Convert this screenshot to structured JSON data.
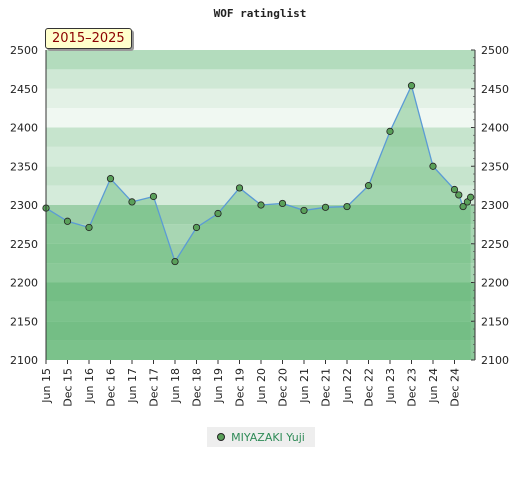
{
  "chart_data": {
    "type": "line",
    "title": "WOF ratinglist",
    "period_label": "2015–2025",
    "ylim": [
      2100,
      2500
    ],
    "yticks": [
      2100,
      2150,
      2200,
      2250,
      2300,
      2350,
      2400,
      2450,
      2500
    ],
    "xticks": [
      "Jun 15",
      "Dec 15",
      "Jun 16",
      "Dec 16",
      "Jun 17",
      "Dec 17",
      "Jun 18",
      "Dec 18",
      "Jun 19",
      "Dec 19",
      "Jun 20",
      "Dec 20",
      "Jun 21",
      "Dec 21",
      "Jun 22",
      "Dec 22",
      "Jun 23",
      "Dec 23",
      "Jun 24",
      "Dec 24"
    ],
    "grid": true,
    "legend_placement": "bottom-center",
    "series": [
      {
        "name": "MIYAZAKI Yuji",
        "x": [
          0,
          1,
          2,
          3,
          4,
          5,
          6,
          7,
          8,
          9,
          10,
          11,
          12,
          13,
          14,
          15,
          16,
          17,
          18,
          19,
          19.2,
          19.4,
          19.6,
          19.75
        ],
        "values": [
          2296,
          2279,
          2271,
          2334,
          2304,
          2311,
          2227,
          2271,
          2289,
          2322,
          2300,
          2302,
          2293,
          2297,
          2298,
          2325,
          2395,
          2454,
          2350,
          2320,
          2313,
          2298,
          2304,
          2310
        ]
      }
    ],
    "colors": {
      "line": "#5b9bd5",
      "area": "#66bb77",
      "marker": "#5aa05a"
    }
  }
}
